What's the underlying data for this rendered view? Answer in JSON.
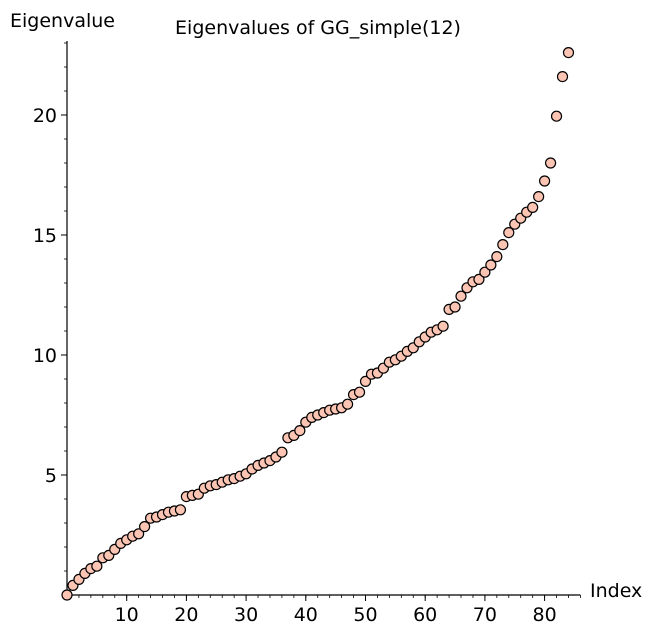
{
  "chart_data": {
    "type": "scatter",
    "title": "Eigenvalues of GG_simple(12)",
    "xlabel": "Index",
    "ylabel": "Eigenvalue",
    "xlim": [
      0,
      86
    ],
    "ylim": [
      0,
      23
    ],
    "x_ticks": [
      10,
      20,
      30,
      40,
      50,
      60,
      70,
      80
    ],
    "y_ticks": [
      5,
      10,
      15,
      20
    ],
    "grid": false,
    "marker_fill": "#fcc4b3",
    "marker_edge": "#000000",
    "x": [
      0,
      1,
      2,
      3,
      4,
      5,
      6,
      7,
      8,
      9,
      10,
      11,
      12,
      13,
      14,
      15,
      16,
      17,
      18,
      19,
      20,
      21,
      22,
      23,
      24,
      25,
      26,
      27,
      28,
      29,
      30,
      31,
      32,
      33,
      34,
      35,
      36,
      37,
      38,
      39,
      40,
      41,
      42,
      43,
      44,
      45,
      46,
      47,
      48,
      49,
      50,
      51,
      52,
      53,
      54,
      55,
      56,
      57,
      58,
      59,
      60,
      61,
      62,
      63,
      64,
      65,
      66,
      67,
      68,
      69,
      70,
      71,
      72,
      73,
      74,
      75,
      76,
      77,
      78,
      79,
      80,
      81,
      82,
      83,
      84
    ],
    "values": [
      0.0,
      0.4,
      0.65,
      0.9,
      1.1,
      1.2,
      1.55,
      1.65,
      1.9,
      2.15,
      2.3,
      2.45,
      2.55,
      2.85,
      3.2,
      3.25,
      3.35,
      3.45,
      3.5,
      3.55,
      4.1,
      4.15,
      4.2,
      4.45,
      4.55,
      4.6,
      4.7,
      4.8,
      4.85,
      4.95,
      5.05,
      5.25,
      5.4,
      5.5,
      5.6,
      5.75,
      5.95,
      6.55,
      6.65,
      6.85,
      7.2,
      7.4,
      7.5,
      7.6,
      7.7,
      7.75,
      7.8,
      7.95,
      8.35,
      8.45,
      8.9,
      9.2,
      9.25,
      9.45,
      9.7,
      9.8,
      9.95,
      10.15,
      10.3,
      10.55,
      10.75,
      10.95,
      11.05,
      11.2,
      11.9,
      12.0,
      12.45,
      12.8,
      13.05,
      13.15,
      13.45,
      13.75,
      14.1,
      14.6,
      15.1,
      15.45,
      15.7,
      15.95,
      16.15,
      16.6,
      17.25,
      18.0,
      19.95,
      21.6,
      22.6
    ]
  }
}
